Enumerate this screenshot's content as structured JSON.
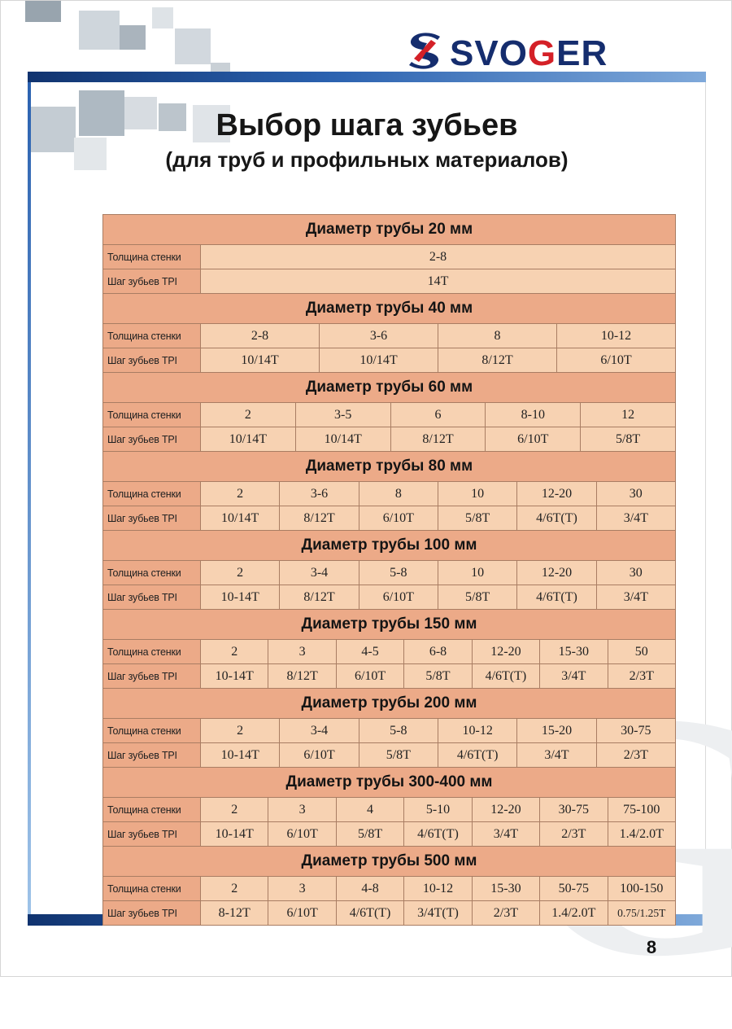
{
  "logo": {
    "pre": "SVO",
    "accent": "G",
    "post": "ER"
  },
  "title": {
    "main": "Выбор шага зубьев",
    "subtitle": "(для труб и профильных материалов)"
  },
  "page": {
    "number": "8",
    "watermark_letter": "G"
  },
  "colors": {
    "accent_blue": "#2b62b0",
    "logo_navy": "#152d6e",
    "logo_red": "#d42027",
    "table_header_bg": "#ecaa88",
    "table_cell_bg": "#f7d2b2"
  },
  "table": {
    "row_labels": [
      "Толщина стенки",
      "Шаг зубьев TPI"
    ],
    "sections": [
      {
        "title": "Диаметр трубы 20 мм",
        "thickness": [
          "2-8"
        ],
        "tpi": [
          "14T"
        ]
      },
      {
        "title": "Диаметр трубы  40 мм",
        "thickness": [
          "2-8",
          "3-6",
          "8",
          "10-12"
        ],
        "tpi": [
          "10/14T",
          "10/14T",
          "8/12T",
          "6/10T"
        ]
      },
      {
        "title": "Диаметр трубы  60 мм",
        "thickness": [
          "2",
          "3-5",
          "6",
          "8-10",
          "12"
        ],
        "tpi": [
          "10/14T",
          "10/14T",
          "8/12T",
          "6/10T",
          "5/8T"
        ]
      },
      {
        "title": "Диаметр трубы 80 мм",
        "thickness": [
          "2",
          "3-6",
          "8",
          "10",
          "12-20",
          "30"
        ],
        "tpi": [
          "10/14T",
          "8/12T",
          "6/10T",
          "5/8T",
          "4/6T(T)",
          "3/4T"
        ]
      },
      {
        "title": "Диаметр трубы 100 мм",
        "thickness": [
          "2",
          "3-4",
          "5-8",
          "10",
          "12-20",
          "30"
        ],
        "tpi": [
          "10-14T",
          "8/12T",
          "6/10T",
          "5/8T",
          "4/6T(T)",
          "3/4T"
        ]
      },
      {
        "title": "Диаметр трубы 150 мм",
        "thickness": [
          "2",
          "3",
          "4-5",
          "6-8",
          "12-20",
          "15-30",
          "50"
        ],
        "tpi": [
          "10-14T",
          "8/12T",
          "6/10T",
          "5/8T",
          "4/6T(T)",
          "3/4T",
          "2/3T"
        ]
      },
      {
        "title": "Диаметр трубы 200 мм",
        "thickness": [
          "2",
          "3-4",
          "5-8",
          "10-12",
          "15-20",
          "30-75"
        ],
        "tpi": [
          "10-14T",
          "6/10T",
          "5/8T",
          "4/6T(T)",
          "3/4T",
          "2/3T"
        ]
      },
      {
        "title": "Диаметр трубы 300-400 мм",
        "thickness": [
          "2",
          "3",
          "4",
          "5-10",
          "12-20",
          "30-75",
          "75-100"
        ],
        "tpi": [
          "10-14T",
          "6/10T",
          "5/8T",
          "4/6T(T)",
          "3/4T",
          "2/3T",
          "1.4/2.0T"
        ]
      },
      {
        "title": "Диаметр трубы 500 мм",
        "thickness": [
          "2",
          "3",
          "4-8",
          "10-12",
          "15-30",
          "50-75",
          "100-150"
        ],
        "tpi": [
          "8-12T",
          "6/10T",
          "4/6T(T)",
          "3/4T(T)",
          "2/3T",
          "1.4/2.0T",
          "0.75/1.25T"
        ]
      }
    ]
  }
}
